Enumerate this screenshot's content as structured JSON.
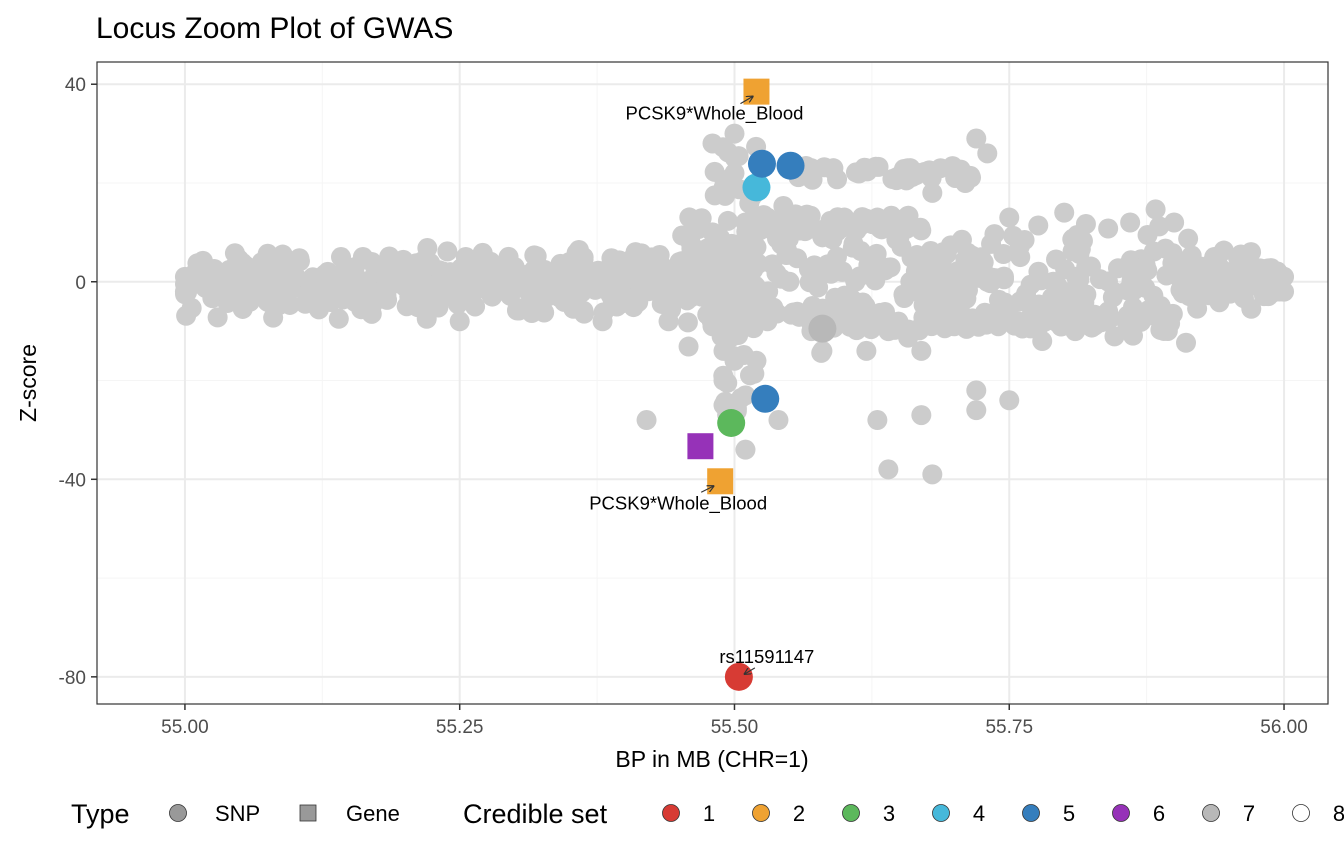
{
  "chart_data": {
    "type": "scatter",
    "title": "Locus Zoom Plot of GWAS",
    "xlabel": "BP in MB (CHR=1)",
    "ylabel": "Z-score",
    "xlim": [
      54.92,
      56.04
    ],
    "ylim": [
      -85.5,
      44.5
    ],
    "xticks": [
      55.0,
      55.25,
      55.5,
      55.75,
      56.0
    ],
    "xtick_labels": [
      "55.00",
      "55.25",
      "55.50",
      "55.75",
      "56.00"
    ],
    "yticks": [
      40,
      0,
      -40,
      -80
    ],
    "ytick_labels": [
      "40",
      "0",
      "-40",
      "-80"
    ],
    "grid": true,
    "background_color": "#CCCCCC",
    "background_points_note": "Dense cloud of grey SNPs not in any credible set, mostly between Z -10 and +10 across 55.00-56.00 MB, with extra branches near 55.50-55.75 MB reaching about +29 and -39",
    "background_points": [
      [
        55.0,
        1
      ],
      [
        55.0,
        -2
      ],
      [
        55.01,
        2
      ],
      [
        55.02,
        0
      ],
      [
        55.03,
        1
      ],
      [
        55.05,
        -1
      ],
      [
        55.06,
        1
      ],
      [
        55.08,
        0
      ],
      [
        55.1,
        1
      ],
      [
        55.12,
        -1
      ],
      [
        55.13,
        2
      ],
      [
        55.14,
        -7.5
      ],
      [
        55.15,
        0
      ],
      [
        55.17,
        -6.5
      ],
      [
        55.17,
        4
      ],
      [
        55.19,
        1
      ],
      [
        55.2,
        -1
      ],
      [
        55.22,
        3
      ],
      [
        55.22,
        -7.5
      ],
      [
        55.24,
        0
      ],
      [
        55.25,
        -8
      ],
      [
        55.26,
        2
      ],
      [
        55.28,
        -2
      ],
      [
        55.3,
        3
      ],
      [
        55.31,
        0
      ],
      [
        55.33,
        -3
      ],
      [
        55.35,
        4
      ],
      [
        55.36,
        -1
      ],
      [
        55.38,
        2
      ],
      [
        55.38,
        -8
      ],
      [
        55.4,
        -3
      ],
      [
        55.41,
        6
      ],
      [
        55.42,
        -28
      ],
      [
        55.43,
        0
      ],
      [
        55.44,
        -8
      ],
      [
        55.45,
        4
      ],
      [
        55.46,
        8
      ],
      [
        55.47,
        -3
      ],
      [
        55.48,
        -9
      ],
      [
        55.48,
        10
      ],
      [
        55.48,
        28
      ],
      [
        55.49,
        19
      ],
      [
        55.49,
        -14
      ],
      [
        55.49,
        -20
      ],
      [
        55.49,
        -25
      ],
      [
        55.5,
        3
      ],
      [
        55.5,
        -6
      ],
      [
        55.5,
        -16
      ],
      [
        55.5,
        22
      ],
      [
        55.5,
        30
      ],
      [
        55.51,
        -23
      ],
      [
        55.51,
        -34
      ],
      [
        55.51,
        12
      ],
      [
        55.52,
        -16
      ],
      [
        55.52,
        -4
      ],
      [
        55.52,
        7
      ],
      [
        55.53,
        13
      ],
      [
        55.53,
        -8
      ],
      [
        55.54,
        -28
      ],
      [
        55.55,
        0
      ],
      [
        55.56,
        13
      ],
      [
        55.57,
        23
      ],
      [
        55.57,
        -10
      ],
      [
        55.58,
        9
      ],
      [
        55.58,
        -14
      ],
      [
        55.59,
        23
      ],
      [
        55.6,
        -6
      ],
      [
        55.6,
        13
      ],
      [
        55.61,
        0
      ],
      [
        55.62,
        -14
      ],
      [
        55.62,
        23
      ],
      [
        55.63,
        -28
      ],
      [
        55.63,
        13
      ],
      [
        55.64,
        -38
      ],
      [
        55.64,
        -10
      ],
      [
        55.65,
        9
      ],
      [
        55.66,
        23
      ],
      [
        55.66,
        0
      ],
      [
        55.67,
        -27
      ],
      [
        55.67,
        -14
      ],
      [
        55.68,
        -39
      ],
      [
        55.68,
        18
      ],
      [
        55.69,
        6
      ],
      [
        55.7,
        -9
      ],
      [
        55.71,
        20
      ],
      [
        55.72,
        29
      ],
      [
        55.72,
        -26
      ],
      [
        55.72,
        -22
      ],
      [
        55.73,
        26
      ],
      [
        55.73,
        0
      ],
      [
        55.74,
        -9
      ],
      [
        55.75,
        13
      ],
      [
        55.75,
        -24
      ],
      [
        55.76,
        5
      ],
      [
        55.78,
        -12
      ],
      [
        55.79,
        0
      ],
      [
        55.8,
        14
      ],
      [
        55.81,
        -10
      ],
      [
        55.82,
        3
      ],
      [
        55.84,
        -6
      ],
      [
        55.86,
        12
      ],
      [
        55.87,
        2
      ],
      [
        55.89,
        -9
      ],
      [
        55.9,
        12
      ],
      [
        55.91,
        0
      ],
      [
        55.93,
        2
      ],
      [
        55.95,
        -2
      ],
      [
        55.97,
        6
      ],
      [
        55.98,
        0
      ],
      [
        56.0,
        1
      ],
      [
        56.0,
        -2
      ]
    ],
    "series": [
      {
        "name": "Credible set 1",
        "type": "SNP",
        "color": "#D73B34",
        "points": [
          {
            "x": 55.504,
            "y": -80.0,
            "label": "rs11591147"
          }
        ]
      },
      {
        "name": "Credible set 2",
        "type": "Gene",
        "color": "#EFA232",
        "points": [
          {
            "x": 55.52,
            "y": 38.5,
            "label": "PCSK9*Whole_Blood"
          },
          {
            "x": 55.487,
            "y": -40.4,
            "label": "PCSK9*Whole_Blood"
          }
        ]
      },
      {
        "name": "Credible set 3",
        "type": "SNP",
        "color": "#5CB85C",
        "points": [
          {
            "x": 55.497,
            "y": -28.6
          }
        ]
      },
      {
        "name": "Credible set 4",
        "type": "SNP",
        "color": "#46B8DA",
        "points": [
          {
            "x": 55.52,
            "y": 19.1
          }
        ]
      },
      {
        "name": "Credible set 5",
        "type": "SNP",
        "color": "#357EBD",
        "points": [
          {
            "x": 55.525,
            "y": 23.9
          },
          {
            "x": 55.551,
            "y": 23.5
          },
          {
            "x": 55.528,
            "y": -23.7
          }
        ]
      },
      {
        "name": "Credible set 6",
        "type": "Gene",
        "color": "#9632B8",
        "points": [
          {
            "x": 55.469,
            "y": -33.3
          }
        ]
      },
      {
        "name": "Credible set 7",
        "type": "SNP",
        "color": "#B8B8B8",
        "points": [
          {
            "x": 55.58,
            "y": -9.5
          }
        ]
      }
    ],
    "legend": {
      "placement": "bottom",
      "type_title": "Type",
      "type_items": [
        {
          "label": "SNP",
          "shape": "circle"
        },
        {
          "label": "Gene",
          "shape": "square"
        }
      ],
      "set_title": "Credible set",
      "set_items": [
        {
          "label": "1",
          "color": "#D73B34"
        },
        {
          "label": "2",
          "color": "#EFA232"
        },
        {
          "label": "3",
          "color": "#5CB85C"
        },
        {
          "label": "4",
          "color": "#46B8DA"
        },
        {
          "label": "5",
          "color": "#357EBD"
        },
        {
          "label": "6",
          "color": "#9632B8"
        },
        {
          "label": "7",
          "color": "#B8B8B8"
        },
        {
          "label": "8",
          "color": "#FFFFFF"
        }
      ]
    }
  }
}
